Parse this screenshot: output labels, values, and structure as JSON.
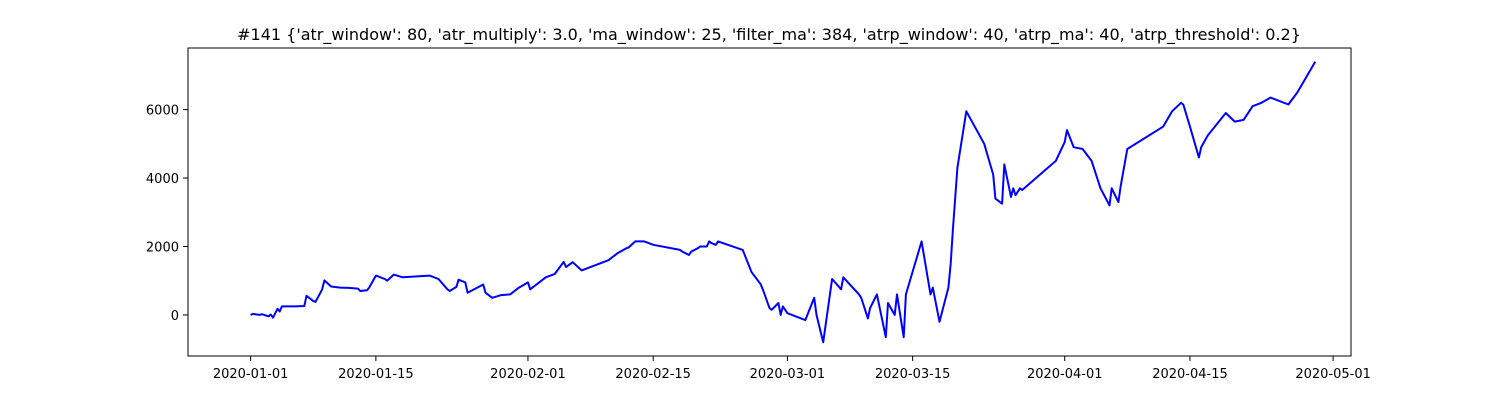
{
  "chart_data": {
    "type": "line",
    "title": "#141 {'atr_window': 80, 'atr_multiply': 3.0, 'ma_window': 25, 'filter_ma': 384, 'atrp_window': 40, 'atrp_ma': 40, 'atrp_threshold': 0.2}",
    "xlabel": "",
    "ylabel": "",
    "x_ticks": [
      "2020-01-01",
      "2020-01-15",
      "2020-02-01",
      "2020-02-15",
      "2020-03-01",
      "2020-03-15",
      "2020-04-01",
      "2020-04-15",
      "2020-05-01"
    ],
    "y_ticks": [
      0,
      2000,
      4000,
      6000
    ],
    "xlim": [
      "2019-12-25",
      "2020-05-03"
    ],
    "ylim": [
      -1200,
      7800
    ],
    "grid": false,
    "legend": "none",
    "series_color": "#0000ff",
    "series": [
      {
        "points": [
          [
            "2020-01-01",
            0
          ],
          [
            "2020-01-01",
            30
          ],
          [
            "2020-01-02",
            0
          ],
          [
            "2020-01-02",
            20
          ],
          [
            "2020-01-03",
            -40
          ],
          [
            "2020-01-03",
            10
          ],
          [
            "2020-01-03",
            -80
          ],
          [
            "2020-01-04",
            180
          ],
          [
            "2020-01-04",
            100
          ],
          [
            "2020-01-04",
            250
          ],
          [
            "2020-01-06",
            250
          ],
          [
            "2020-01-07",
            260
          ],
          [
            "2020-01-07",
            560
          ],
          [
            "2020-01-08",
            410
          ],
          [
            "2020-01-08",
            380
          ],
          [
            "2020-01-09",
            750
          ],
          [
            "2020-01-09",
            1010
          ],
          [
            "2020-01-10",
            830
          ],
          [
            "2020-01-11",
            800
          ],
          [
            "2020-01-12",
            790
          ],
          [
            "2020-01-13",
            770
          ],
          [
            "2020-01-13",
            700
          ],
          [
            "2020-01-14",
            720
          ],
          [
            "2020-01-14",
            800
          ],
          [
            "2020-01-15",
            1150
          ],
          [
            "2020-01-16",
            1050
          ],
          [
            "2020-01-16",
            1000
          ],
          [
            "2020-01-17",
            1180
          ],
          [
            "2020-01-18",
            1100
          ],
          [
            "2020-01-21",
            1150
          ],
          [
            "2020-01-22",
            1050
          ],
          [
            "2020-01-23",
            750
          ],
          [
            "2020-01-23",
            700
          ],
          [
            "2020-01-24",
            820
          ],
          [
            "2020-01-24",
            1030
          ],
          [
            "2020-01-25",
            950
          ],
          [
            "2020-01-25",
            650
          ],
          [
            "2020-01-27",
            890
          ],
          [
            "2020-01-27",
            650
          ],
          [
            "2020-01-28",
            500
          ],
          [
            "2020-01-29",
            580
          ],
          [
            "2020-01-30",
            600
          ],
          [
            "2020-01-31",
            800
          ],
          [
            "2020-02-01",
            950
          ],
          [
            "2020-02-01",
            750
          ],
          [
            "2020-02-03",
            1100
          ],
          [
            "2020-02-04",
            1200
          ],
          [
            "2020-02-05",
            1550
          ],
          [
            "2020-02-05",
            1400
          ],
          [
            "2020-02-06",
            1540
          ],
          [
            "2020-02-07",
            1300
          ],
          [
            "2020-02-10",
            1600
          ],
          [
            "2020-02-11",
            1800
          ],
          [
            "2020-02-12",
            1950
          ],
          [
            "2020-02-12",
            1970
          ],
          [
            "2020-02-13",
            2150
          ],
          [
            "2020-02-14",
            2150
          ],
          [
            "2020-02-15",
            2050
          ],
          [
            "2020-02-18",
            1900
          ],
          [
            "2020-02-18",
            1850
          ],
          [
            "2020-02-19",
            1750
          ],
          [
            "2020-02-19",
            1850
          ],
          [
            "2020-02-20",
            1950
          ],
          [
            "2020-02-20",
            2000
          ],
          [
            "2020-02-21",
            2000
          ],
          [
            "2020-02-21",
            2150
          ],
          [
            "2020-02-21",
            2100
          ],
          [
            "2020-02-22",
            2050
          ],
          [
            "2020-02-22",
            2150
          ],
          [
            "2020-02-25",
            1900
          ],
          [
            "2020-02-26",
            1250
          ],
          [
            "2020-02-27",
            900
          ],
          [
            "2020-02-27",
            750
          ],
          [
            "2020-02-28",
            200
          ],
          [
            "2020-02-28",
            150
          ],
          [
            "2020-02-29",
            350
          ],
          [
            "2020-02-29",
            0
          ],
          [
            "2020-02-29",
            250
          ],
          [
            "2020-03-01",
            50
          ],
          [
            "2020-03-03",
            -150
          ],
          [
            "2020-03-04",
            500
          ],
          [
            "2020-03-04",
            0
          ],
          [
            "2020-03-05",
            -800
          ],
          [
            "2020-03-06",
            1050
          ],
          [
            "2020-03-07",
            750
          ],
          [
            "2020-03-07",
            1100
          ],
          [
            "2020-03-09",
            600
          ],
          [
            "2020-03-09",
            500
          ],
          [
            "2020-03-10",
            -100
          ],
          [
            "2020-03-10",
            200
          ],
          [
            "2020-03-11",
            600
          ],
          [
            "2020-03-12",
            -650
          ],
          [
            "2020-03-12",
            350
          ],
          [
            "2020-03-13",
            0
          ],
          [
            "2020-03-13",
            600
          ],
          [
            "2020-03-14",
            -650
          ],
          [
            "2020-03-14",
            600
          ],
          [
            "2020-03-16",
            2150
          ],
          [
            "2020-03-17",
            600
          ],
          [
            "2020-03-17",
            800
          ],
          [
            "2020-03-18",
            -200
          ],
          [
            "2020-03-19",
            800
          ],
          [
            "2020-03-19",
            1500
          ],
          [
            "2020-03-19",
            2500
          ],
          [
            "2020-03-20",
            4300
          ],
          [
            "2020-03-21",
            5950
          ],
          [
            "2020-03-23",
            5000
          ],
          [
            "2020-03-24",
            4100
          ],
          [
            "2020-03-24",
            3400
          ],
          [
            "2020-03-25",
            3250
          ],
          [
            "2020-03-25",
            4400
          ],
          [
            "2020-03-26",
            3450
          ],
          [
            "2020-03-26",
            3700
          ],
          [
            "2020-03-26",
            3500
          ],
          [
            "2020-03-27",
            3700
          ],
          [
            "2020-03-27",
            3650
          ],
          [
            "2020-03-31",
            4500
          ],
          [
            "2020-04-01",
            5050
          ],
          [
            "2020-04-01",
            5400
          ],
          [
            "2020-04-02",
            4900
          ],
          [
            "2020-04-03",
            4850
          ],
          [
            "2020-04-04",
            4500
          ],
          [
            "2020-04-05",
            3700
          ],
          [
            "2020-04-06",
            3200
          ],
          [
            "2020-04-06",
            3700
          ],
          [
            "2020-04-07",
            3300
          ],
          [
            "2020-04-07",
            3750
          ],
          [
            "2020-04-08",
            4850
          ],
          [
            "2020-04-12",
            5500
          ],
          [
            "2020-04-13",
            5950
          ],
          [
            "2020-04-14",
            6200
          ],
          [
            "2020-04-14",
            6150
          ],
          [
            "2020-04-15",
            5500
          ],
          [
            "2020-04-16",
            4600
          ],
          [
            "2020-04-16",
            4900
          ],
          [
            "2020-04-17",
            5250
          ],
          [
            "2020-04-19",
            5900
          ],
          [
            "2020-04-20",
            5650
          ],
          [
            "2020-04-21",
            5700
          ],
          [
            "2020-04-22",
            6100
          ],
          [
            "2020-04-23",
            6200
          ],
          [
            "2020-04-24",
            6350
          ],
          [
            "2020-04-26",
            6150
          ],
          [
            "2020-04-27",
            6500
          ],
          [
            "2020-04-28",
            6950
          ],
          [
            "2020-04-29",
            7400
          ]
        ]
      }
    ]
  }
}
